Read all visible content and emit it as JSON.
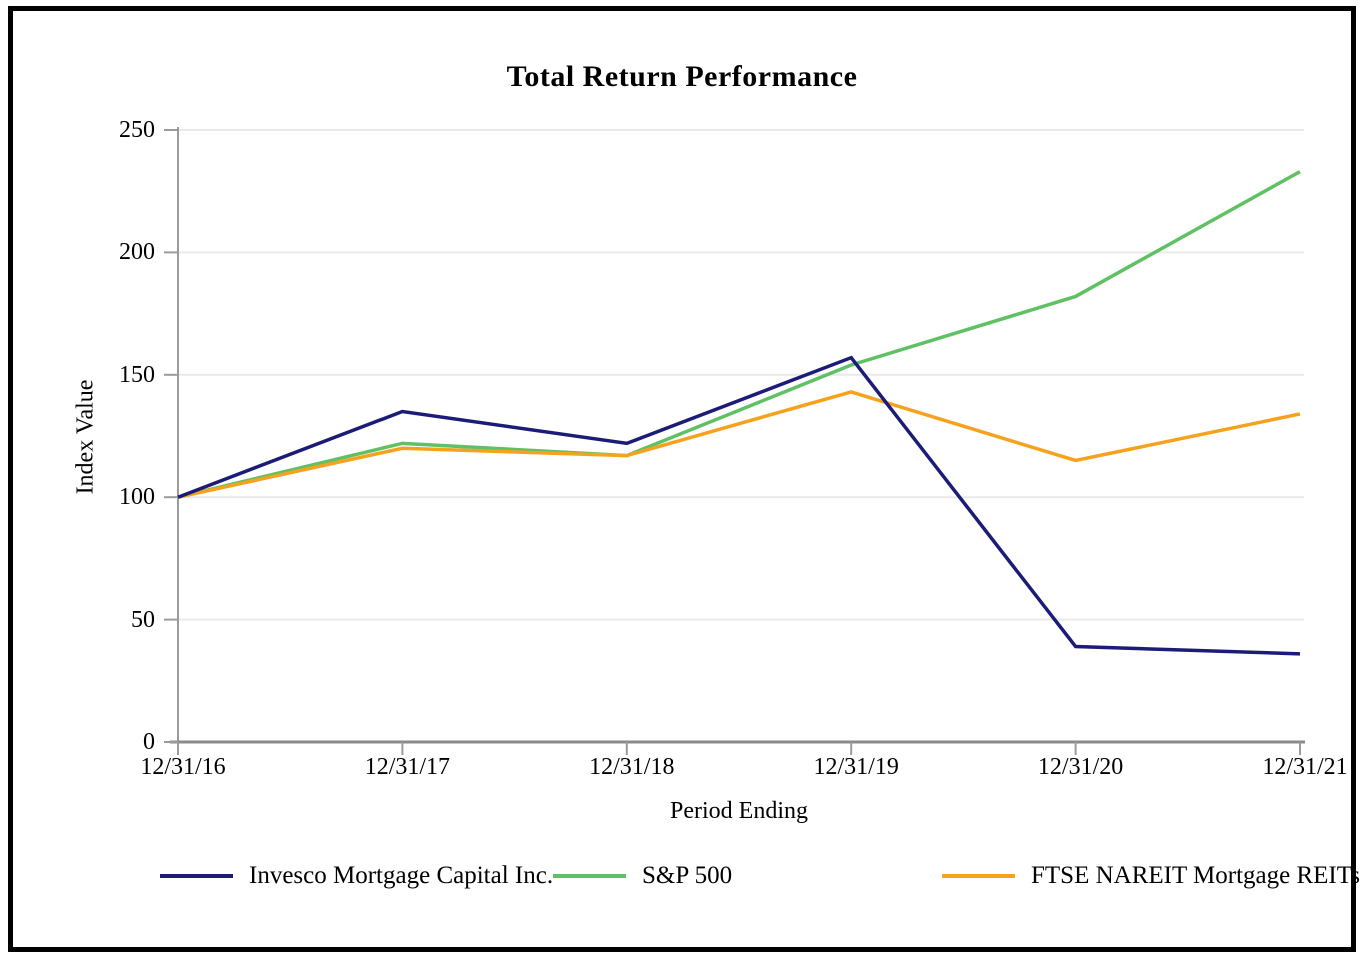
{
  "page": {
    "title": "Total Return Performance"
  },
  "chart_data": {
    "type": "line",
    "title": "Total Return Performance",
    "xlabel": "Period Ending",
    "ylabel": "Index Value",
    "categories": [
      "12/31/16",
      "12/31/17",
      "12/31/18",
      "12/31/19",
      "12/31/20",
      "12/31/21"
    ],
    "series": [
      {
        "name": "Invesco Mortgage Capital Inc.",
        "color": "#1c1c78",
        "values": [
          100,
          135,
          122,
          157,
          39,
          36
        ]
      },
      {
        "name": "S&P 500",
        "color": "#5fc064",
        "values": [
          100,
          122,
          117,
          154,
          182,
          233
        ]
      },
      {
        "name": "FTSE NAREIT Mortgage REITs",
        "color": "#f6a21f",
        "values": [
          100,
          120,
          117,
          143,
          115,
          134
        ]
      }
    ],
    "ylim": [
      0,
      250
    ],
    "yticks": [
      0,
      50,
      100,
      150,
      200,
      250
    ],
    "grid": "horizontal",
    "legend_position": "bottom"
  },
  "colors": {
    "gridline": "#e9e9e9",
    "axis_spine": "#9b9b9b",
    "bottom_spine": "#8a8a8a",
    "text": "#000000",
    "frame_border": "#000000"
  }
}
